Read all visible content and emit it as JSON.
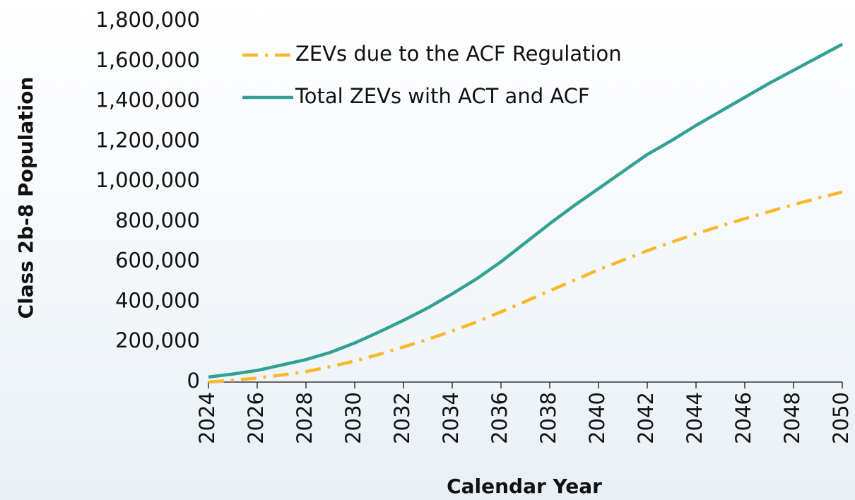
{
  "chart_data": {
    "type": "line",
    "x_label": "Calendar Year",
    "y_label": "Class 2b-8 Population",
    "x": [
      2024,
      2025,
      2026,
      2027,
      2028,
      2029,
      2030,
      2031,
      2032,
      2033,
      2034,
      2035,
      2036,
      2037,
      2038,
      2039,
      2040,
      2041,
      2042,
      2043,
      2044,
      2045,
      2046,
      2047,
      2048,
      2049,
      2050
    ],
    "series": [
      {
        "name": "ZEVs due to the ACF Regulation",
        "color": "#f9b82b",
        "dash": "dashdot",
        "values": [
          0,
          9000,
          20000,
          35000,
          52000,
          77000,
          105000,
          138000,
          175000,
          213000,
          255000,
          300000,
          350000,
          402000,
          455000,
          508000,
          560000,
          608000,
          655000,
          698000,
          740000,
          778000,
          815000,
          850000,
          885000,
          917000,
          948000
        ]
      },
      {
        "name": "Total ZEVs with ACT and ACF",
        "color": "#30a193",
        "dash": "solid",
        "values": [
          25000,
          40000,
          58000,
          85000,
          112000,
          148000,
          195000,
          250000,
          308000,
          370000,
          440000,
          515000,
          600000,
          695000,
          790000,
          880000,
          965000,
          1050000,
          1135000,
          1205000,
          1280000,
          1350000,
          1420000,
          1490000,
          1555000,
          1620000,
          1685000
        ]
      }
    ],
    "xlim": [
      2024,
      2050
    ],
    "xticks": [
      2024,
      2026,
      2028,
      2030,
      2032,
      2034,
      2036,
      2038,
      2040,
      2042,
      2044,
      2046,
      2048,
      2050
    ],
    "ylim": [
      0,
      1800000
    ],
    "yticks": [
      0,
      {
        "value": 200000,
        "label": "200,000"
      },
      {
        "value": 400000,
        "label": "400,000"
      },
      {
        "value": 600000,
        "label": "600,000"
      },
      {
        "value": 800000,
        "label": "800,000"
      },
      {
        "value": 1000000,
        "label": "1,000,000"
      },
      {
        "value": 1200000,
        "label": "1,200,000"
      },
      {
        "value": 1400000,
        "label": "1,400,000"
      },
      {
        "value": 1600000,
        "label": "1,600,000"
      },
      {
        "value": 1800000,
        "label": "1,800,000"
      }
    ],
    "legend": "upper left"
  }
}
